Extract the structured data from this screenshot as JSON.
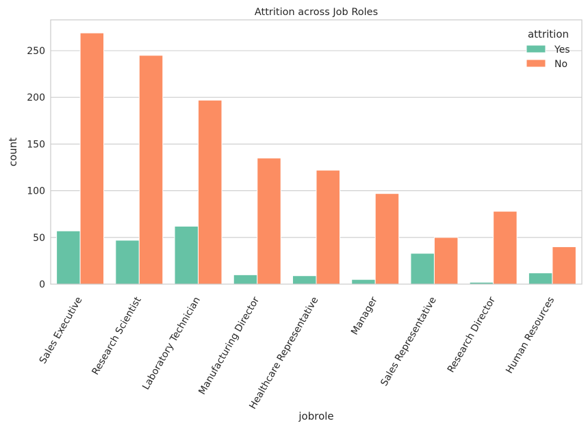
{
  "chart_data": {
    "type": "bar",
    "title": "Attrition across Job Roles",
    "xlabel": "jobrole",
    "ylabel": "count",
    "categories": [
      "Sales Executive",
      "Research Scientist",
      "Laboratory Technician",
      "Manufacturing Director",
      "Healthcare Representative",
      "Manager",
      "Sales Representative",
      "Research Director",
      "Human Resources"
    ],
    "series": [
      {
        "name": "Yes",
        "color": "#66c2a5",
        "values": [
          57,
          47,
          62,
          10,
          9,
          5,
          33,
          2,
          12
        ]
      },
      {
        "name": "No",
        "color": "#fc8d62",
        "values": [
          269,
          245,
          197,
          135,
          122,
          97,
          50,
          78,
          40
        ]
      }
    ],
    "ylim": [
      0,
      283
    ],
    "yticks": [
      0,
      50,
      100,
      150,
      200,
      250
    ],
    "grid": "horizontal",
    "legend": {
      "title": "attrition",
      "position": "top-right"
    }
  }
}
